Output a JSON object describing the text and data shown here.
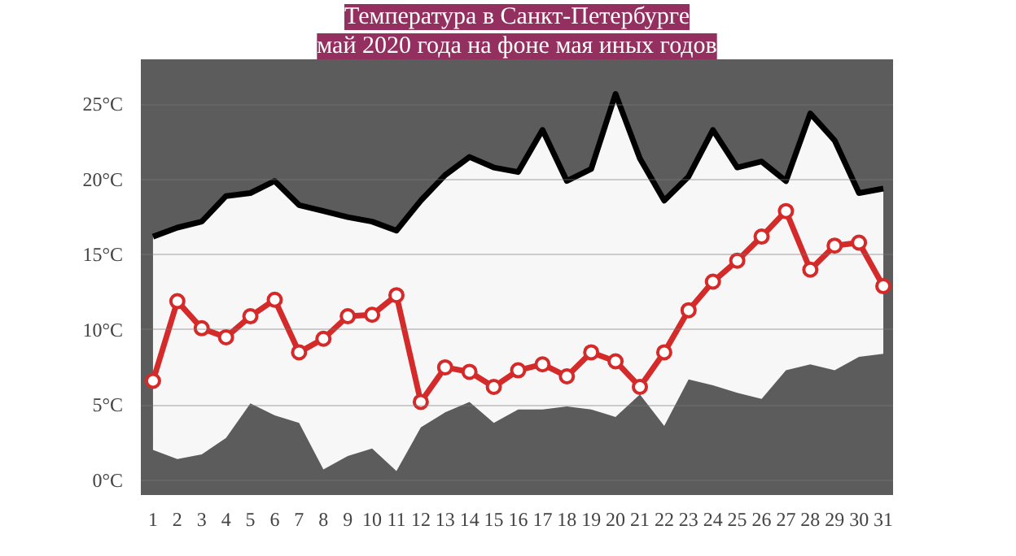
{
  "chart_data": {
    "type": "line",
    "title": "Температура в Санкт-Петербурге",
    "subtitle": "май 2020 года на фоне мая иных годов",
    "x": [
      1,
      2,
      3,
      4,
      5,
      6,
      7,
      8,
      9,
      10,
      11,
      12,
      13,
      14,
      15,
      16,
      17,
      18,
      19,
      20,
      21,
      22,
      23,
      24,
      25,
      26,
      27,
      28,
      29,
      30,
      31
    ],
    "xlim": [
      0.5,
      31.4
    ],
    "xticks": [
      1,
      2,
      3,
      4,
      5,
      6,
      7,
      8,
      9,
      10,
      11,
      12,
      13,
      14,
      15,
      16,
      17,
      18,
      19,
      20,
      21,
      22,
      23,
      24,
      25,
      26,
      27,
      28,
      29,
      30,
      31
    ],
    "ylim": [
      -1,
      28
    ],
    "yticks": [
      {
        "value": 0,
        "label": "0°C"
      },
      {
        "value": 5,
        "label": "5°C"
      },
      {
        "value": 10,
        "label": "10°C"
      },
      {
        "value": 15,
        "label": "15°C"
      },
      {
        "value": 20,
        "label": "20°C"
      },
      {
        "value": 25,
        "label": "25°C"
      }
    ],
    "grid": "y",
    "marker": "circle",
    "line_style": "solid",
    "series": [
      {
        "color": "#000000",
        "marker": "none",
        "values": [
          16.2,
          16.8,
          17.2,
          18.9,
          19.1,
          19.9,
          18.3,
          17.9,
          17.5,
          17.2,
          16.6,
          18.6,
          20.3,
          21.5,
          20.8,
          20.5,
          23.3,
          19.9,
          20.7,
          25.7,
          21.4,
          18.6,
          20.2,
          23.3,
          20.8,
          21.2,
          19.9,
          24.4,
          22.6,
          19.1,
          19.4
        ]
      },
      {
        "color": "#d42a2a",
        "values": [
          6.6,
          11.9,
          10.1,
          9.5,
          10.9,
          12.0,
          8.5,
          9.4,
          10.9,
          11.0,
          12.3,
          5.2,
          7.5,
          7.2,
          6.2,
          7.3,
          7.7,
          6.9,
          8.5,
          7.9,
          6.2,
          8.5,
          11.3,
          13.2,
          14.6,
          16.2,
          17.9,
          14.0,
          15.6,
          15.8,
          12.9
        ],
        "lower": [
          2.0,
          1.4,
          1.7,
          2.8,
          5.1,
          4.3,
          3.8,
          0.7,
          1.6,
          2.1,
          0.6,
          3.5,
          4.5,
          5.2,
          3.8,
          4.7,
          4.7,
          4.9,
          4.7,
          4.2,
          5.7,
          3.6,
          6.7,
          6.3,
          5.8,
          5.4,
          7.3,
          7.7,
          7.3,
          8.2,
          8.4
        ],
        "upper": [
          16.2,
          16.8,
          17.2,
          18.9,
          19.1,
          19.9,
          18.3,
          17.9,
          17.5,
          17.2,
          16.6,
          18.6,
          20.3,
          21.5,
          20.8,
          20.5,
          23.3,
          19.9,
          20.7,
          25.7,
          21.4,
          18.6,
          20.2,
          23.3,
          20.8,
          21.2,
          19.9,
          24.4,
          22.6,
          19.1,
          19.4
        ]
      }
    ]
  }
}
